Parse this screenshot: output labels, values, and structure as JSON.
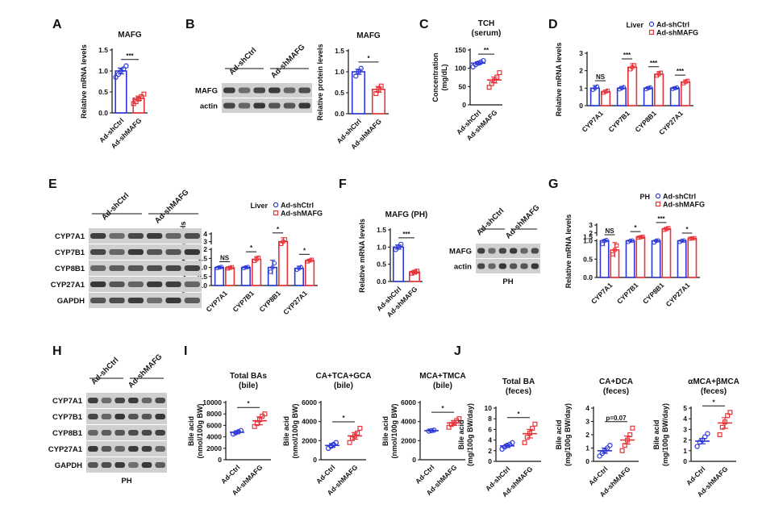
{
  "colors": {
    "ctrl": "#2c38d8",
    "sh": "#e8333a",
    "axis": "#111111",
    "blot_bg": "#cfcfcf",
    "band": "#2f2f2f"
  },
  "chart_data": [
    {
      "id": "A",
      "type": "bar",
      "title": "MAFG",
      "ylabel": "Relative mRNA levels",
      "categories": [
        "Ad-shCtrl",
        "Ad-shMAFG"
      ],
      "values": [
        1.0,
        0.35
      ],
      "errors": [
        0.07,
        0.05
      ],
      "points": [
        [
          0.85,
          0.92,
          1.0,
          1.05,
          1.12
        ],
        [
          0.22,
          0.27,
          0.33,
          0.39,
          0.45
        ]
      ],
      "ylim": [
        0,
        1.5
      ],
      "yticks": [
        "0.0",
        "0.5",
        "1.0",
        "1.5"
      ],
      "sig": [
        "***"
      ]
    },
    {
      "id": "B",
      "type": "bar",
      "title": "MAFG",
      "ylabel": "Relative protein levels",
      "categories": [
        "Ad-shCtrl",
        "Ad-shMAFG"
      ],
      "values": [
        1.0,
        0.58
      ],
      "errors": [
        0.06,
        0.07
      ],
      "points": [
        [
          0.9,
          1.0,
          1.08
        ],
        [
          0.48,
          0.58,
          0.66
        ]
      ],
      "ylim": [
        0,
        1.5
      ],
      "yticks": [
        "0.0",
        "0.5",
        "1.0",
        "1.5"
      ],
      "sig": [
        "*"
      ]
    },
    {
      "id": "C",
      "type": "scatter",
      "title": "TCH",
      "subtitle": "(serum)",
      "ylabel": "Concentration",
      "ylabel2": "(mg/dL)",
      "categories": [
        "Ad-shCtrl",
        "Ad-shMAFG"
      ],
      "values": [
        114,
        68
      ],
      "errors": [
        4,
        8
      ],
      "points": [
        [
          104,
          110,
          114,
          117,
          121
        ],
        [
          48,
          58,
          66,
          76,
          88
        ]
      ],
      "ylim": [
        0,
        150
      ],
      "yticks": [
        "0",
        "50",
        "100",
        "150"
      ],
      "sig": [
        "**"
      ]
    },
    {
      "id": "D",
      "type": "bar",
      "title": "Liver",
      "ylabel": "Relative mRNA levels",
      "categories": [
        "CYP7A1",
        "CYP7B1",
        "CYP8B1",
        "CYP27A1"
      ],
      "series": [
        {
          "name": "Ad-shCtrl",
          "values": [
            1.0,
            1.0,
            1.0,
            1.0
          ],
          "errors": [
            0.15,
            0.1,
            0.08,
            0.06
          ]
        },
        {
          "name": "Ad-shMAFG",
          "values": [
            0.8,
            2.2,
            1.8,
            1.35
          ],
          "errors": [
            0.1,
            0.2,
            0.15,
            0.12
          ]
        }
      ],
      "ylim": [
        0,
        3
      ],
      "yticks": [
        "0",
        "1",
        "2",
        "3"
      ],
      "sig": [
        "NS",
        "***",
        "***",
        "***"
      ]
    },
    {
      "id": "E",
      "type": "bar",
      "title": "Liver",
      "ylabel": "Relative protein levels",
      "categories": [
        "CYP7A1",
        "CYP7B1",
        "CYP8B1",
        "CYP27A1"
      ],
      "series": [
        {
          "name": "Ad-shCtrl",
          "values": [
            1.0,
            1.0,
            1.0,
            0.95
          ],
          "errors": [
            0.05,
            0.05,
            0.4,
            0.12
          ]
        },
        {
          "name": "Ad-shMAFG",
          "values": [
            0.98,
            1.45,
            3.0,
            1.38
          ],
          "errors": [
            0.06,
            0.15,
            0.5,
            0.08
          ]
        }
      ],
      "ylim": [
        0,
        4
      ],
      "yticks": [
        "0.0",
        "0.5",
        "1.0",
        "1.5",
        "2",
        "3",
        "4"
      ],
      "sig": [
        "NS",
        "*",
        "*",
        "*"
      ]
    },
    {
      "id": "F",
      "type": "bar",
      "title": "MAFG (PH)",
      "ylabel": "Relative mRNA levels",
      "categories": [
        "Ad-shCtrl",
        "Ad-shMAFG"
      ],
      "values": [
        1.0,
        0.27
      ],
      "errors": [
        0.06,
        0.03
      ],
      "points": [
        [
          0.93,
          1.0,
          1.08
        ],
        [
          0.24,
          0.27,
          0.3
        ]
      ],
      "ylim": [
        0,
        1.5
      ],
      "yticks": [
        "0.0",
        "0.5",
        "1.0",
        "1.5"
      ],
      "sig": [
        "***"
      ]
    },
    {
      "id": "G",
      "type": "bar",
      "title": "PH",
      "ylabel": "Relative mRNA levels",
      "categories": [
        "CYP7A1",
        "CYP7B1",
        "CYP8B1",
        "CYP27A1"
      ],
      "series": [
        {
          "name": "Ad-shCtrl",
          "values": [
            1.0,
            1.0,
            1.0,
            1.0
          ],
          "errors": [
            0.15,
            0.05,
            0.08,
            0.05
          ]
        },
        {
          "name": "Ad-shMAFG",
          "values": [
            0.75,
            1.45,
            2.5,
            1.3
          ],
          "errors": [
            0.2,
            0.1,
            0.2,
            0.06
          ]
        }
      ],
      "ylim": [
        0,
        3
      ],
      "yticks": [
        "0.0",
        "0.5",
        "1.0",
        "1.5",
        "2",
        "3"
      ],
      "sig": [
        "NS",
        "*",
        "***",
        "*"
      ]
    },
    {
      "id": "I1",
      "type": "scatter",
      "title": "Total BAs",
      "subtitle": "(bile)",
      "ylabel": "Bile acid",
      "ylabel2": "(nmol/100g BW)",
      "categories": [
        "Ad-Ctrl",
        "Ad-shMAFG"
      ],
      "values": [
        4800,
        6800
      ],
      "errors": [
        250,
        700
      ],
      "points": [
        [
          4500,
          4700,
          4900,
          5100
        ],
        [
          5800,
          6300,
          7000,
          7600,
          8000
        ]
      ],
      "ylim": [
        0,
        10000
      ],
      "yticks": [
        "0",
        "2000",
        "4000",
        "6000",
        "8000",
        "10000"
      ],
      "sig": [
        "*"
      ]
    },
    {
      "id": "I2",
      "type": "scatter",
      "title": "CA+TCA+GCA",
      "subtitle": "(bile)",
      "ylabel": "Bile acid",
      "ylabel2": "(nmol/100g BW)",
      "categories": [
        "Ad-Ctrl",
        "Ad-shMAFG"
      ],
      "values": [
        1500,
        2500
      ],
      "errors": [
        200,
        350
      ],
      "points": [
        [
          1200,
          1400,
          1600,
          1800
        ],
        [
          1800,
          2200,
          2500,
          2800,
          3300
        ]
      ],
      "ylim": [
        0,
        6000
      ],
      "yticks": [
        "0",
        "2000",
        "4000",
        "6000"
      ],
      "sig": [
        "*"
      ]
    },
    {
      "id": "I3",
      "type": "scatter",
      "title": "MCA+TMCA",
      "subtitle": "(bile)",
      "ylabel": "Bile acid",
      "ylabel2": "(nmol/100g BW)",
      "categories": [
        "Ad-Ctrl",
        "Ad-shMAFG"
      ],
      "values": [
        3050,
        3850
      ],
      "errors": [
        60,
        250
      ],
      "points": [
        [
          3000,
          3050,
          3100
        ],
        [
          3400,
          3700,
          3900,
          4100,
          4300
        ]
      ],
      "ylim": [
        0,
        6000
      ],
      "yticks": [
        "0",
        "2000",
        "4000",
        "6000"
      ],
      "sig": [
        "*"
      ]
    },
    {
      "id": "J1",
      "type": "scatter",
      "title": "Total BA",
      "subtitle": "(feces)",
      "ylabel": "Bile acid",
      "ylabel2": "(mg/100g BW/day)",
      "categories": [
        "Ad-shCtrl",
        "Ad-shMAFG"
      ],
      "values": [
        2.9,
        5.2
      ],
      "errors": [
        0.3,
        0.8
      ],
      "points": [
        [
          2.3,
          2.7,
          3.0,
          3.2,
          3.5
        ],
        [
          3.5,
          4.5,
          5.3,
          6.2,
          7.0
        ]
      ],
      "ylim": [
        0,
        10
      ],
      "yticks": [
        "0",
        "2",
        "4",
        "6",
        "8",
        "10"
      ],
      "sig": [
        "*"
      ]
    },
    {
      "id": "J2",
      "type": "scatter",
      "title": "CA+DCA",
      "subtitle": "(feces)",
      "ylabel": "Bile acid",
      "ylabel2": "(mg/100g BW/day)",
      "categories": [
        "Ad-Ctrl",
        "Ad-shMAFG"
      ],
      "values": [
        0.8,
        1.6
      ],
      "errors": [
        0.2,
        0.3
      ],
      "points": [
        [
          0.4,
          0.6,
          0.8,
          1.0,
          1.2
        ],
        [
          0.8,
          1.2,
          1.6,
          2.0,
          2.5
        ]
      ],
      "ylim": [
        0,
        4
      ],
      "yticks": [
        "0",
        "1",
        "2",
        "3",
        "4"
      ],
      "sig": [
        "p=0.07"
      ]
    },
    {
      "id": "J3",
      "type": "scatter",
      "title": "αMCA+βMCA",
      "subtitle": "(feces)",
      "ylabel": "Bile acid",
      "ylabel2": "(mg/100g BW/day)",
      "categories": [
        "Ad-Ctrl",
        "Ad-shMAFG"
      ],
      "values": [
        1.9,
        3.6
      ],
      "errors": [
        0.25,
        0.5
      ],
      "points": [
        [
          1.4,
          1.8,
          2.0,
          2.3,
          2.6
        ],
        [
          2.5,
          3.2,
          3.7,
          4.3,
          4.6
        ]
      ],
      "ylim": [
        0,
        5
      ],
      "yticks": [
        "0",
        "1",
        "2",
        "3",
        "4",
        "5"
      ],
      "sig": [
        "*"
      ]
    }
  ],
  "panel_labels": [
    "A",
    "B",
    "C",
    "D",
    "E",
    "F",
    "G",
    "H",
    "I",
    "J"
  ],
  "blots": {
    "B": {
      "groups": [
        "Ad-shCtrl",
        "Ad-shMAFG"
      ],
      "rows": [
        "MAFG",
        "actin"
      ]
    },
    "E": {
      "groups": [
        "Ad-shCtrl",
        "Ad-shMAFG"
      ],
      "rows": [
        "CYP7A1",
        "CYP7B1",
        "CYP8B1",
        "CYP27A1",
        "GAPDH"
      ]
    },
    "F": {
      "groups": [
        "Ad-shCtrl",
        "Ad-shMAFG"
      ],
      "rows": [
        "MAFG",
        "actin"
      ],
      "caption": "PH"
    },
    "H": {
      "groups": [
        "Ad-shCtrl",
        "Ad-shMAFG"
      ],
      "rows": [
        "CYP7A1",
        "CYP7B1",
        "CYP8B1",
        "CYP27A1",
        "GAPDH"
      ],
      "caption": "PH"
    }
  }
}
